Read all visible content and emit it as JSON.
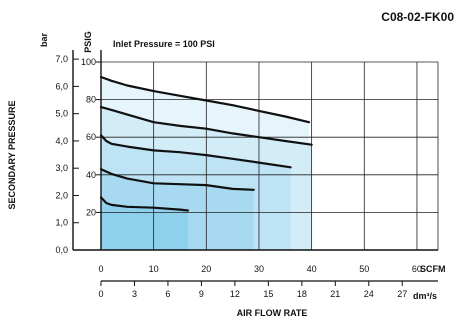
{
  "chart_data": {
    "type": "line",
    "code": "C08-02-FK00",
    "annotation": "Inlet Pressure = 100 PSI",
    "xlabel": "AIR FLOW RATE",
    "ylabel": "SECONDARY PRESSURE",
    "x_unit_top": "SCFM",
    "x_unit_bottom": "dm³/s",
    "y_unit_left": "bar",
    "y_unit_right": "PSIG",
    "xlim": [
      0,
      64
    ],
    "ylim": [
      0,
      100
    ],
    "x_ticks_scfm": [
      "0",
      "10",
      "20",
      "30",
      "40",
      "50",
      "60"
    ],
    "x_tick_values_scfm": [
      0,
      10,
      20,
      30,
      40,
      50,
      60
    ],
    "x_ticks_dm3s": [
      "0",
      "3",
      "6",
      "9",
      "12",
      "15",
      "18",
      "21",
      "24",
      "27"
    ],
    "x_tick_values_dm3s": [
      0,
      3,
      6,
      9,
      12,
      15,
      18,
      21,
      24,
      27
    ],
    "y_ticks_psig": [
      "20",
      "40",
      "60",
      "80",
      "100"
    ],
    "y_tick_values_psig": [
      20,
      40,
      60,
      80,
      100
    ],
    "y_ticks_bar": [
      "0,0",
      "1,0",
      "2,0",
      "3,0",
      "4,0",
      "5,0",
      "6,0",
      "7,0"
    ],
    "y_tick_values_bar": [
      0,
      1,
      2,
      3,
      4,
      5,
      6,
      7
    ],
    "grid": true,
    "series": [
      {
        "values": [
          [
            0,
            92
          ],
          [
            2,
            90
          ],
          [
            5,
            87.5
          ],
          [
            10,
            84.5
          ],
          [
            15,
            82
          ],
          [
            20,
            79.5
          ],
          [
            25,
            77
          ],
          [
            30,
            74
          ],
          [
            35,
            71
          ],
          [
            39.5,
            68
          ]
        ]
      },
      {
        "values": [
          [
            0,
            76
          ],
          [
            2,
            74.5
          ],
          [
            5,
            72
          ],
          [
            10,
            68
          ],
          [
            15,
            66
          ],
          [
            20,
            64.5
          ],
          [
            25,
            62
          ],
          [
            30,
            60
          ],
          [
            35,
            58
          ],
          [
            40,
            56
          ]
        ]
      },
      {
        "values": [
          [
            0,
            61
          ],
          [
            1,
            58
          ],
          [
            2,
            56.5
          ],
          [
            5,
            55
          ],
          [
            10,
            53
          ],
          [
            15,
            52
          ],
          [
            20,
            50.5
          ],
          [
            25,
            48.5
          ],
          [
            30,
            46.5
          ],
          [
            36,
            44
          ]
        ]
      },
      {
        "values": [
          [
            0,
            43
          ],
          [
            2,
            40.5
          ],
          [
            5,
            38
          ],
          [
            10,
            35.5
          ],
          [
            15,
            35
          ],
          [
            20,
            34.5
          ],
          [
            25,
            32.5
          ],
          [
            29,
            32
          ]
        ]
      },
      {
        "values": [
          [
            0,
            28
          ],
          [
            1,
            25
          ],
          [
            2,
            24
          ],
          [
            5,
            23
          ],
          [
            10,
            22.5
          ],
          [
            15,
            21.5
          ],
          [
            16.5,
            21
          ]
        ]
      }
    ]
  }
}
